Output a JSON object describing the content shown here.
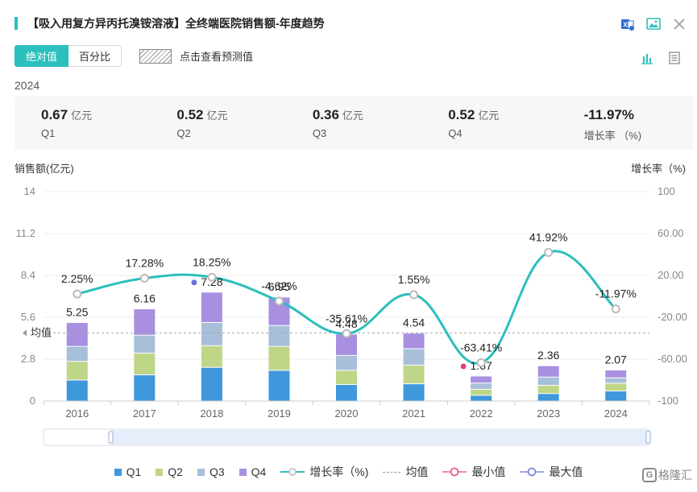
{
  "title": "【吸入用复方异丙托溴铵溶液】全终端医院销售额-年度趋势",
  "toolbar": {
    "absolute_label": "绝对值",
    "percent_label": "百分比",
    "forecast_label": "点击查看预测值"
  },
  "colors": {
    "accent": "#2bbfbd",
    "q1": "#3f97dc",
    "q2": "#bfd588",
    "q3": "#a7bfd9",
    "q4": "#a88fe0",
    "growth_line": "#2bbfbd",
    "min_marker": "#e2457a",
    "max_marker": "#6a74d6"
  },
  "summary": {
    "year": "2024",
    "items": [
      {
        "value": "0.67",
        "unit": "亿元",
        "label": "Q1"
      },
      {
        "value": "0.52",
        "unit": "亿元",
        "label": "Q2"
      },
      {
        "value": "0.36",
        "unit": "亿元",
        "label": "Q3"
      },
      {
        "value": "0.52",
        "unit": "亿元",
        "label": "Q4"
      },
      {
        "value": "-11.97%",
        "unit": "",
        "label": "增长率 （%)"
      }
    ]
  },
  "chart": {
    "left_axis_title": "销售额(亿元)",
    "right_axis_title": "增长率（%)",
    "avg_label": "均值"
  },
  "legend": {
    "q1": "Q1",
    "q2": "Q2",
    "q3": "Q3",
    "q4": "Q4",
    "growth": "增长率（%)",
    "avg": "均值",
    "min": "最小值",
    "max": "最大值"
  },
  "watermark": "格隆汇",
  "chart_data": {
    "type": "bar",
    "stacked": true,
    "categories": [
      "2016",
      "2017",
      "2018",
      "2019",
      "2020",
      "2021",
      "2022",
      "2023",
      "2024"
    ],
    "series": [
      {
        "name": "Q1",
        "values": [
          1.4,
          1.75,
          2.25,
          2.05,
          1.1,
          1.15,
          0.38,
          0.5,
          0.67
        ]
      },
      {
        "name": "Q2",
        "values": [
          1.25,
          1.45,
          1.45,
          1.6,
          0.95,
          1.25,
          0.4,
          0.55,
          0.52
        ]
      },
      {
        "name": "Q3",
        "values": [
          1.0,
          1.2,
          1.55,
          1.4,
          1.0,
          1.1,
          0.42,
          0.55,
          0.36
        ]
      },
      {
        "name": "Q4",
        "values": [
          1.6,
          1.76,
          2.03,
          1.9,
          1.43,
          1.04,
          0.47,
          0.76,
          0.52
        ]
      }
    ],
    "totals": [
      "5.25",
      "6.16",
      "7.28",
      "6.95",
      "4.48",
      "4.54",
      "1.67",
      "2.36",
      "2.07"
    ],
    "growth": {
      "name": "增长率（%)",
      "values": [
        2.25,
        17.28,
        18.25,
        -4.62,
        -35.61,
        1.55,
        -63.41,
        41.92,
        -11.97
      ],
      "labels": [
        "2.25%",
        "17.28%",
        "18.25%",
        "-4.62%",
        "-35.61%",
        "1.55%",
        "-63.41%",
        "41.92%",
        "-11.97%"
      ]
    },
    "average": 4.55,
    "min_index": 6,
    "max_index": 2,
    "y_left": {
      "min": 0,
      "max": 14,
      "ticks": [
        "0",
        "2.8",
        "5.6",
        "8.4",
        "11.2",
        "14"
      ]
    },
    "y_right": {
      "min": -100,
      "max": 100,
      "ticks": [
        "-100",
        "-60.00",
        "-20.00",
        "20.00",
        "60.00",
        "100"
      ]
    }
  }
}
